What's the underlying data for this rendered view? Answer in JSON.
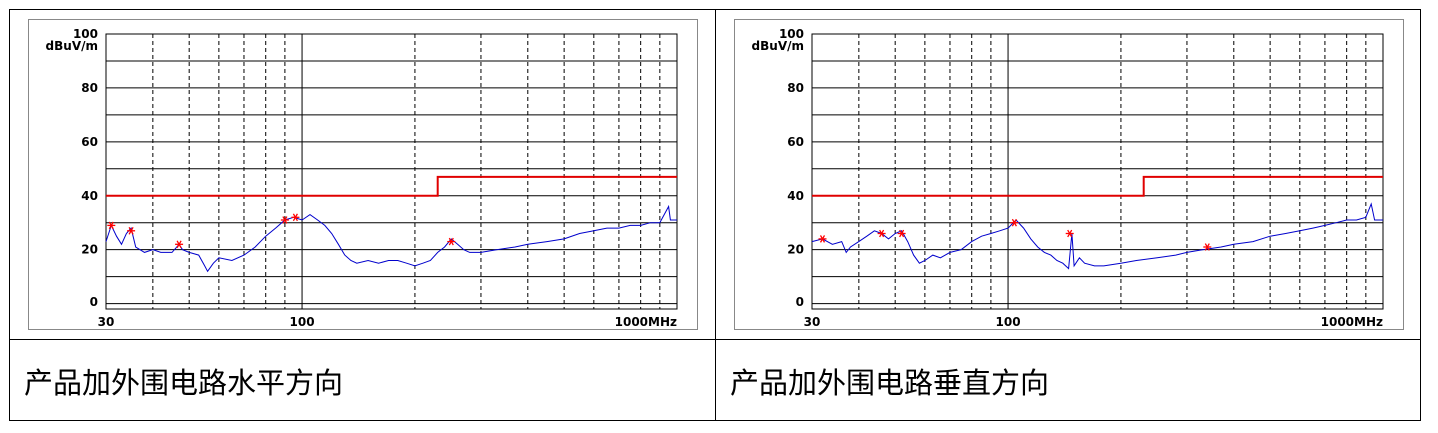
{
  "cells": [
    {
      "caption": "产品加外围电路水平方向",
      "chart_data": {
        "type": "line",
        "ylabel": "dBuV/m",
        "y_tick_labels": [
          "100",
          "80",
          "60",
          "40",
          "20",
          "0"
        ],
        "x_tick_labels": [
          "30",
          "100",
          "1000MHz"
        ],
        "xscale": "log",
        "xlim": [
          30,
          1000
        ],
        "ylim": [
          -2,
          100
        ],
        "grid": true,
        "limit_line": {
          "color": "#e00000",
          "points": [
            [
              30,
              40
            ],
            [
              230,
              40
            ],
            [
              230,
              47
            ],
            [
              1000,
              47
            ]
          ]
        },
        "trace": {
          "color": "#0000cc",
          "points": [
            [
              30,
              23
            ],
            [
              31,
              29
            ],
            [
              32,
              25
            ],
            [
              33,
              22
            ],
            [
              34,
              26
            ],
            [
              35,
              28
            ],
            [
              36,
              21
            ],
            [
              38,
              19
            ],
            [
              40,
              20
            ],
            [
              42,
              19
            ],
            [
              45,
              19
            ],
            [
              47,
              22
            ],
            [
              48,
              20
            ],
            [
              50,
              19
            ],
            [
              53,
              18
            ],
            [
              55,
              14
            ],
            [
              56,
              12
            ],
            [
              58,
              15
            ],
            [
              60,
              17
            ],
            [
              65,
              16
            ],
            [
              70,
              18
            ],
            [
              75,
              21
            ],
            [
              80,
              25
            ],
            [
              85,
              28
            ],
            [
              90,
              31
            ],
            [
              95,
              32
            ],
            [
              100,
              31
            ],
            [
              105,
              33
            ],
            [
              110,
              31
            ],
            [
              115,
              29
            ],
            [
              120,
              26
            ],
            [
              125,
              22
            ],
            [
              130,
              18
            ],
            [
              135,
              16
            ],
            [
              140,
              15
            ],
            [
              150,
              16
            ],
            [
              160,
              15
            ],
            [
              170,
              16
            ],
            [
              180,
              16
            ],
            [
              190,
              15
            ],
            [
              200,
              14
            ],
            [
              210,
              15
            ],
            [
              220,
              16
            ],
            [
              230,
              19
            ],
            [
              240,
              21
            ],
            [
              250,
              24
            ],
            [
              260,
              22
            ],
            [
              270,
              20
            ],
            [
              280,
              19
            ],
            [
              300,
              19
            ],
            [
              330,
              20
            ],
            [
              370,
              21
            ],
            [
              400,
              22
            ],
            [
              450,
              23
            ],
            [
              500,
              24
            ],
            [
              550,
              26
            ],
            [
              600,
              27
            ],
            [
              650,
              28
            ],
            [
              700,
              28
            ],
            [
              750,
              29
            ],
            [
              800,
              29
            ],
            [
              850,
              30
            ],
            [
              900,
              30
            ],
            [
              950,
              36
            ],
            [
              960,
              31
            ],
            [
              1000,
              31
            ]
          ]
        },
        "markers": {
          "color": "#ff0000",
          "points": [
            [
              31,
              29
            ],
            [
              35,
              27
            ],
            [
              47,
              22
            ],
            [
              90,
              31
            ],
            [
              96,
              32
            ],
            [
              250,
              23
            ]
          ]
        }
      }
    },
    {
      "caption": "产品加外围电路垂直方向",
      "chart_data": {
        "type": "line",
        "ylabel": "dBuV/m",
        "y_tick_labels": [
          "100",
          "80",
          "60",
          "40",
          "20",
          "0"
        ],
        "x_tick_labels": [
          "30",
          "100",
          "1000MHz"
        ],
        "xscale": "log",
        "xlim": [
          30,
          1000
        ],
        "ylim": [
          -2,
          100
        ],
        "grid": true,
        "limit_line": {
          "color": "#e00000",
          "points": [
            [
              30,
              40
            ],
            [
              230,
              40
            ],
            [
              230,
              47
            ],
            [
              1000,
              47
            ]
          ]
        },
        "trace": {
          "color": "#0000cc",
          "points": [
            [
              30,
              23
            ],
            [
              32,
              24
            ],
            [
              34,
              22
            ],
            [
              36,
              23
            ],
            [
              37,
              19
            ],
            [
              38,
              21
            ],
            [
              40,
              23
            ],
            [
              42,
              25
            ],
            [
              44,
              27
            ],
            [
              46,
              26
            ],
            [
              48,
              24
            ],
            [
              50,
              26
            ],
            [
              52,
              27
            ],
            [
              54,
              23
            ],
            [
              56,
              18
            ],
            [
              58,
              15
            ],
            [
              60,
              16
            ],
            [
              63,
              18
            ],
            [
              66,
              17
            ],
            [
              70,
              19
            ],
            [
              75,
              20
            ],
            [
              80,
              23
            ],
            [
              85,
              25
            ],
            [
              90,
              26
            ],
            [
              95,
              27
            ],
            [
              100,
              28
            ],
            [
              105,
              31
            ],
            [
              110,
              28
            ],
            [
              115,
              24
            ],
            [
              120,
              21
            ],
            [
              125,
              19
            ],
            [
              130,
              18
            ],
            [
              135,
              16
            ],
            [
              140,
              15
            ],
            [
              145,
              13
            ],
            [
              148,
              26
            ],
            [
              150,
              14
            ],
            [
              155,
              17
            ],
            [
              160,
              15
            ],
            [
              170,
              14
            ],
            [
              180,
              14
            ],
            [
              200,
              15
            ],
            [
              220,
              16
            ],
            [
              250,
              17
            ],
            [
              280,
              18
            ],
            [
              300,
              19
            ],
            [
              330,
              20
            ],
            [
              370,
              21
            ],
            [
              400,
              22
            ],
            [
              450,
              23
            ],
            [
              500,
              25
            ],
            [
              550,
              26
            ],
            [
              600,
              27
            ],
            [
              650,
              28
            ],
            [
              700,
              29
            ],
            [
              750,
              30
            ],
            [
              800,
              31
            ],
            [
              850,
              31
            ],
            [
              900,
              32
            ],
            [
              930,
              37
            ],
            [
              950,
              31
            ],
            [
              1000,
              31
            ]
          ]
        },
        "markers": {
          "color": "#ff0000",
          "points": [
            [
              32,
              24
            ],
            [
              46,
              26
            ],
            [
              52,
              26
            ],
            [
              104,
              30
            ],
            [
              146,
              26
            ],
            [
              340,
              21
            ]
          ]
        }
      }
    }
  ]
}
